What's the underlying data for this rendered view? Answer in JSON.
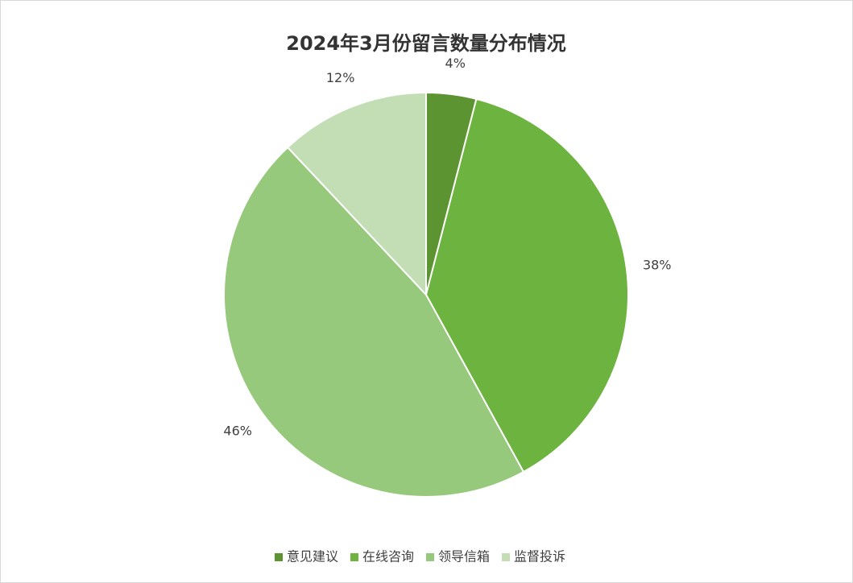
{
  "chart_data": {
    "type": "pie",
    "title": "2024年3月份留言数量分布情况",
    "categories": [
      "意见建议",
      "在线咨询",
      "领导信箱",
      "监督投诉"
    ],
    "values": [
      4,
      38,
      46,
      12
    ],
    "value_labels": [
      "4%",
      "38%",
      "46%",
      "12%"
    ],
    "colors": [
      "#5b9431",
      "#6db33f",
      "#96c97c",
      "#c3deb5"
    ],
    "legend": "bottom"
  }
}
